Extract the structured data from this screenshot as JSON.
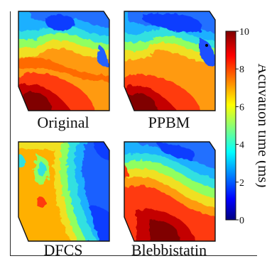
{
  "figure": {
    "panels": [
      {
        "label": "Original",
        "icon": "activation-map-original"
      },
      {
        "label": "PPBM",
        "icon": "activation-map-ppbm"
      },
      {
        "label": "DFCS",
        "icon": "activation-map-dfcs"
      },
      {
        "label": "Blebbistatin",
        "icon": "activation-map-blebbistatin"
      }
    ],
    "colorbar": {
      "title": "Activation time (ms)",
      "ticks": [
        "0",
        "2",
        "4",
        "6",
        "8",
        "10"
      ],
      "min": 0,
      "max": 10,
      "colormap": "jet",
      "colors": [
        "#00007f",
        "#0000ff",
        "#007fff",
        "#00ffff",
        "#7fff7f",
        "#ffff00",
        "#ff7f00",
        "#ff0000",
        "#7f0000"
      ]
    }
  }
}
